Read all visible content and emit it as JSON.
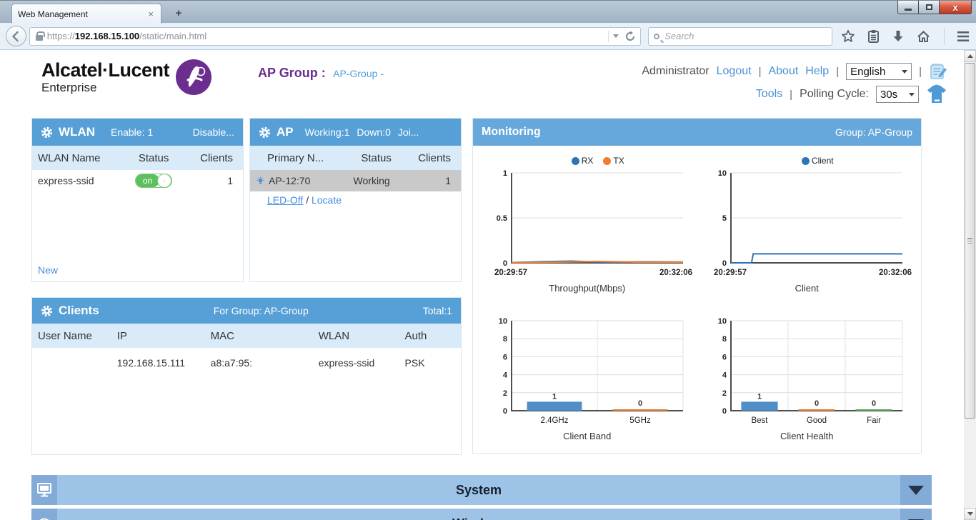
{
  "browser": {
    "tab_title": "Web Management",
    "tab_close_glyph": "×",
    "new_tab_label": "+",
    "url_scheme": "https://",
    "url_host": "192.168.15.100",
    "url_path": "/static/main.html",
    "search_placeholder": "Search",
    "close_button_glyph": "x"
  },
  "header": {
    "brand_line1": "Alcatel·Lucent",
    "brand_line2": "Enterprise",
    "ap_group_label": "AP Group :",
    "ap_group_value": "AP-Group -",
    "user": "Administrator",
    "logout": "Logout",
    "about": "About",
    "help": "Help",
    "language": "English",
    "tools": "Tools",
    "polling_label": "Polling Cycle:",
    "polling_value": "30s",
    "separator": "|"
  },
  "wlan_panel": {
    "title": "WLAN",
    "enable_label": "Enable: 1",
    "disable_label": "Disable...",
    "columns": [
      "WLAN Name",
      "Status",
      "Clients"
    ],
    "rows": [
      {
        "name": "express-ssid",
        "status": "on",
        "knob": ".",
        "clients": "1"
      }
    ],
    "new_link": "New"
  },
  "ap_panel": {
    "title": "AP",
    "working_label": "Working:1",
    "down_label": "Down:0",
    "joining_label": "Joi...",
    "columns": [
      "Primary N...",
      "Status",
      "Clients"
    ],
    "rows": [
      {
        "name": "AP-12:70",
        "status": "Working",
        "clients": "1"
      }
    ],
    "led_off_link": "LED-Off",
    "slash": "/",
    "locate_link": "Locate"
  },
  "clients_panel": {
    "title": "Clients",
    "subtitle": "For Group: AP-Group",
    "total_label": "Total:1",
    "columns": [
      "User Name",
      "IP",
      "MAC",
      "WLAN",
      "Auth"
    ],
    "rows": [
      {
        "user": "",
        "ip": "192.168.15.111",
        "mac": "a8:a7:95:",
        "wlan": "express-ssid",
        "auth": "PSK"
      }
    ]
  },
  "monitoring": {
    "title": "Monitoring",
    "group_label": "Group: AP-Group"
  },
  "chart_data": [
    {
      "type": "line",
      "title": "Throughput(Mbps)",
      "x_start_label": "20:29:57",
      "x_end_label": "20:32:06",
      "ylim": [
        0,
        1
      ],
      "yticks": [
        0,
        0.5,
        1
      ],
      "grid": true,
      "legend_position": "top-center",
      "series": [
        {
          "name": "RX",
          "color": "#2e75b6",
          "points": [
            [
              0,
              0.004
            ],
            [
              0.15,
              0.012
            ],
            [
              0.35,
              0.02
            ],
            [
              0.55,
              0.008
            ],
            [
              0.8,
              0.012
            ],
            [
              1,
              0.01
            ]
          ]
        },
        {
          "name": "TX",
          "color": "#ed7d31",
          "points": [
            [
              0,
              0.004
            ],
            [
              0.2,
              0.006
            ],
            [
              0.5,
              0.016
            ],
            [
              0.75,
              0.008
            ],
            [
              1,
              0.008
            ]
          ]
        }
      ]
    },
    {
      "type": "line",
      "title": "Client",
      "x_start_label": "20:29:57",
      "x_end_label": "20:32:06",
      "ylim": [
        0,
        10
      ],
      "yticks": [
        0,
        5,
        10
      ],
      "grid": true,
      "legend_position": "top-center",
      "series": [
        {
          "name": "Client",
          "color": "#2e75b6",
          "points": [
            [
              0,
              0
            ],
            [
              0.12,
              0
            ],
            [
              0.13,
              1
            ],
            [
              1,
              1
            ]
          ]
        }
      ]
    },
    {
      "type": "bar",
      "title": "Client Band",
      "categories": [
        "2.4GHz",
        "5GHz"
      ],
      "values": [
        1,
        0
      ],
      "colors": [
        "#4e8fc7",
        "#ed7d31"
      ],
      "ylim": [
        0,
        10
      ],
      "yticks": [
        0,
        2,
        4,
        6,
        8,
        10
      ],
      "grid": true
    },
    {
      "type": "bar",
      "title": "Client Health",
      "categories": [
        "Best",
        "Good",
        "Fair"
      ],
      "values": [
        1,
        0,
        0
      ],
      "colors": [
        "#4e8fc7",
        "#ed7d31",
        "#5ba85b"
      ],
      "ylim": [
        0,
        10
      ],
      "yticks": [
        0,
        2,
        4,
        6,
        8,
        10
      ],
      "grid": true
    }
  ],
  "accordion": {
    "system_label": "System",
    "wireless_label": "Wireless"
  },
  "colors": {
    "panel_header_blue": "#57a0d7",
    "monitoring_header_blue": "#66a8db",
    "table_header_bg": "#d9ebf8",
    "accordion_bg": "#9dc3e6",
    "accordion_accent": "#82abd8",
    "link_blue": "#4a90d9",
    "brand_purple": "#6b2e8f",
    "toggle_green": "#5cc05c",
    "selected_row_gray": "#c9c9c9",
    "rx_blue": "#2e75b6",
    "tx_orange": "#ed7d31",
    "fair_green": "#5ba85b"
  }
}
